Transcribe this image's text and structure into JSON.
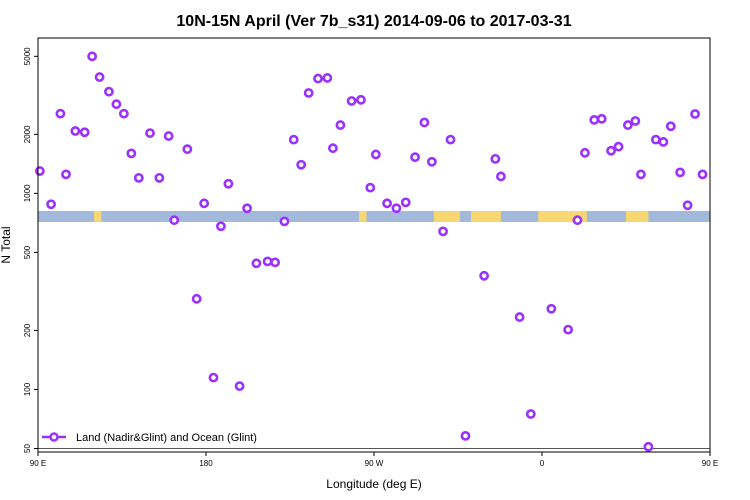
{
  "chart_data": {
    "type": "scatter",
    "title": "10N-15N April (Ver 7b_s31)   2014-09-06 to 2017-03-31",
    "xlabel": "Longitude (deg E)",
    "ylabel": "N Total",
    "xlim": [
      90,
      450
    ],
    "ylim": [
      48,
      6200
    ],
    "y_scale": "log",
    "x_ticks": [
      {
        "value": 90,
        "label": "90 E"
      },
      {
        "value": 180,
        "label": "180"
      },
      {
        "value": 270,
        "label": "90 W"
      },
      {
        "value": 360,
        "label": "0"
      },
      {
        "value": 450,
        "label": "90 E"
      },
      {
        "value": 540,
        "label": "180"
      }
    ],
    "y_ticks": [
      {
        "value": 50,
        "label": "50"
      },
      {
        "value": 100,
        "label": "100"
      },
      {
        "value": 200,
        "label": "200"
      },
      {
        "value": 500,
        "label": "500"
      },
      {
        "value": 1000,
        "label": "1000"
      },
      {
        "value": 2000,
        "label": "2000"
      },
      {
        "value": 5000,
        "label": "5000"
      }
    ],
    "reference_line_y": 50,
    "legend": {
      "position": "bottom-left",
      "label": "Land (Nadir&Glint) and Ocean (Glint)",
      "color": "#9b30ff"
    },
    "land_ocean_strip": {
      "ocean_color": "#a3b9dc",
      "land_color": "#f8d672",
      "land_ranges": [
        [
          120,
          124
        ],
        [
          262,
          266
        ],
        [
          302,
          316
        ],
        [
          322,
          338
        ],
        [
          358,
          384
        ],
        [
          405,
          417
        ],
        [
          459,
          462
        ],
        [
          471,
          477
        ],
        [
          520,
          527
        ]
      ]
    },
    "series": [
      {
        "color": "#9b30ff",
        "points": [
          [
            91,
            1300
          ],
          [
            97,
            880
          ],
          [
            102,
            2550
          ],
          [
            105,
            1250
          ],
          [
            110,
            2080
          ],
          [
            115,
            2050
          ],
          [
            119,
            5000
          ],
          [
            123,
            3920
          ],
          [
            128,
            3300
          ],
          [
            132,
            2850
          ],
          [
            136,
            2550
          ],
          [
            140,
            1600
          ],
          [
            144,
            1200
          ],
          [
            150,
            2030
          ],
          [
            155,
            1200
          ],
          [
            160,
            1960
          ],
          [
            163,
            730
          ],
          [
            170,
            1680
          ],
          [
            175,
            290
          ],
          [
            179,
            890
          ],
          [
            184,
            115
          ],
          [
            188,
            680
          ],
          [
            192,
            1120
          ],
          [
            198,
            104
          ],
          [
            202,
            840
          ],
          [
            207,
            440
          ],
          [
            213,
            450
          ],
          [
            217,
            445
          ],
          [
            222,
            720
          ],
          [
            227,
            1880
          ],
          [
            231,
            1400
          ],
          [
            235,
            3250
          ],
          [
            240,
            3850
          ],
          [
            245,
            3880
          ],
          [
            248,
            1700
          ],
          [
            252,
            2230
          ],
          [
            258,
            2960
          ],
          [
            263,
            3000
          ],
          [
            268,
            1070
          ],
          [
            271,
            1580
          ],
          [
            277,
            890
          ],
          [
            282,
            840
          ],
          [
            287,
            900
          ],
          [
            292,
            1530
          ],
          [
            297,
            2300
          ],
          [
            301,
            1450
          ],
          [
            307,
            640
          ],
          [
            311,
            1880
          ],
          [
            319,
            58
          ],
          [
            329,
            380
          ],
          [
            335,
            1500
          ],
          [
            338,
            1220
          ],
          [
            348,
            234
          ],
          [
            354,
            75
          ],
          [
            365,
            258
          ],
          [
            374,
            202
          ],
          [
            379,
            730
          ],
          [
            383,
            1610
          ],
          [
            388,
            2370
          ],
          [
            392,
            2400
          ],
          [
            397,
            1650
          ],
          [
            401,
            1730
          ],
          [
            406,
            2230
          ],
          [
            410,
            2340
          ],
          [
            413,
            1250
          ],
          [
            417,
            51
          ],
          [
            421,
            1880
          ],
          [
            425,
            1830
          ],
          [
            429,
            2200
          ],
          [
            434,
            1280
          ],
          [
            438,
            870
          ],
          [
            442,
            2540
          ],
          [
            446,
            1250
          ]
        ]
      }
    ]
  }
}
